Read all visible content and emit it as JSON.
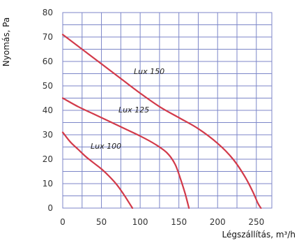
{
  "chart_data": {
    "type": "line",
    "title": "",
    "xlabel": "Légszállítás, m³/h",
    "ylabel": "Nyomás, Pa",
    "xlim": [
      0,
      270
    ],
    "ylim": [
      0,
      80
    ],
    "x_ticks": [
      0,
      50,
      100,
      150,
      200,
      250
    ],
    "y_ticks": [
      0,
      10,
      20,
      30,
      40,
      50,
      60,
      70,
      80
    ],
    "grid": true,
    "grid_x_step": 25,
    "grid_y_step": 5,
    "curve_color": "#d23a4a",
    "series": [
      {
        "name": "Lux 100",
        "points": [
          [
            0,
            31
          ],
          [
            10,
            27
          ],
          [
            20,
            24
          ],
          [
            30,
            21
          ],
          [
            40,
            18.5
          ],
          [
            50,
            16
          ],
          [
            60,
            13
          ],
          [
            70,
            9.5
          ],
          [
            80,
            5
          ],
          [
            88,
            1
          ],
          [
            90,
            0
          ]
        ]
      },
      {
        "name": "Lux 125",
        "points": [
          [
            0,
            45
          ],
          [
            20,
            41.5
          ],
          [
            40,
            38.5
          ],
          [
            60,
            35.5
          ],
          [
            80,
            32.5
          ],
          [
            100,
            29.5
          ],
          [
            120,
            26
          ],
          [
            135,
            22.5
          ],
          [
            145,
            18
          ],
          [
            152,
            12
          ],
          [
            158,
            6
          ],
          [
            163,
            0
          ]
        ]
      },
      {
        "name": "Lux 150",
        "points": [
          [
            0,
            71
          ],
          [
            25,
            65
          ],
          [
            50,
            59
          ],
          [
            75,
            53
          ],
          [
            100,
            47
          ],
          [
            125,
            41.5
          ],
          [
            150,
            37
          ],
          [
            175,
            32.5
          ],
          [
            200,
            26.5
          ],
          [
            220,
            20
          ],
          [
            235,
            13
          ],
          [
            245,
            7
          ],
          [
            252,
            2
          ],
          [
            256,
            0
          ]
        ]
      }
    ]
  }
}
